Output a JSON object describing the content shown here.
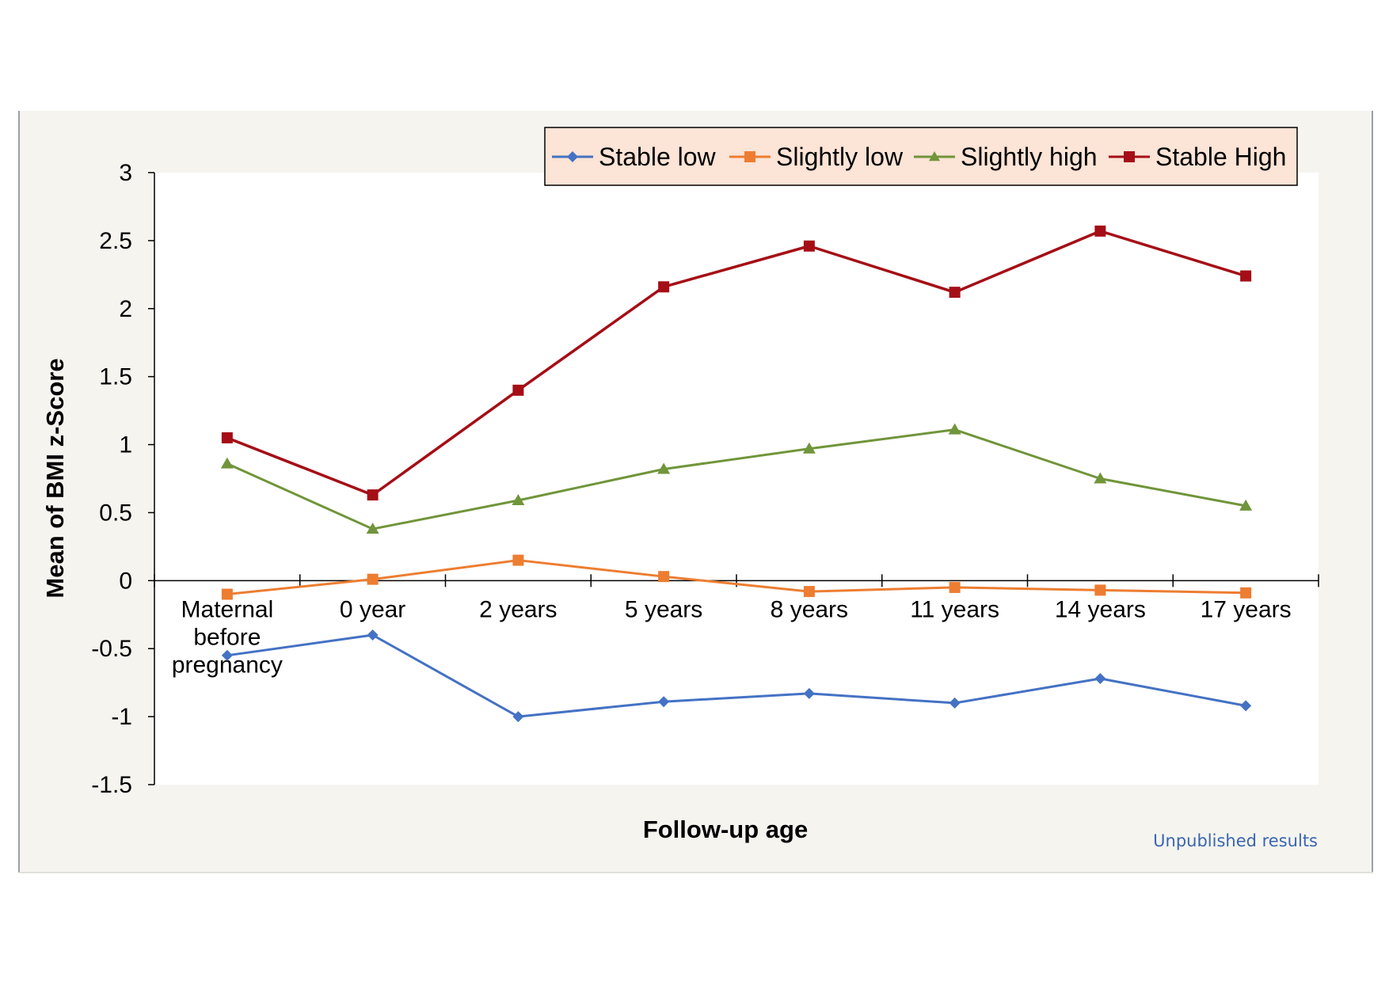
{
  "note": {
    "text": "Unpublished results",
    "color": "#3A66B0"
  },
  "chart_data": {
    "type": "line",
    "title": "",
    "xlabel": "Follow-up age",
    "ylabel": "Mean of BMI z-Score",
    "ylim": [
      -1.5,
      3
    ],
    "yticks": [
      3,
      2.5,
      2,
      1.5,
      1,
      0.5,
      0,
      -0.5,
      -1,
      -1.5
    ],
    "ytick_labels": [
      "3",
      "2.5",
      "2",
      "1.5",
      "1",
      "0.5",
      "0",
      "-0.5",
      "-1",
      "-1.5"
    ],
    "categories": [
      [
        "Maternal",
        "before",
        "pregnancy"
      ],
      [
        "0 year"
      ],
      [
        "2 years"
      ],
      [
        "5 years"
      ],
      [
        "8 years"
      ],
      [
        "11 years"
      ],
      [
        "14 years"
      ],
      [
        "17 years"
      ]
    ],
    "grid": false,
    "legend_position": "top-right",
    "series": [
      {
        "name": "Stable low",
        "color": "#4472C4",
        "marker": "diamond",
        "values": [
          -0.55,
          -0.4,
          -1.0,
          -0.89,
          -0.83,
          -0.9,
          -0.72,
          -0.92
        ]
      },
      {
        "name": "Slightly low",
        "color": "#ED7D31",
        "marker": "square",
        "values": [
          -0.1,
          0.01,
          0.15,
          0.03,
          -0.08,
          -0.05,
          -0.07,
          -0.09
        ]
      },
      {
        "name": "Slightly high",
        "color": "#70953A",
        "marker": "triangle",
        "values": [
          0.86,
          0.38,
          0.59,
          0.82,
          0.97,
          1.11,
          0.75,
          0.55
        ]
      },
      {
        "name": "Stable High",
        "color": "#A50E16",
        "marker": "square",
        "values": [
          1.05,
          0.63,
          1.4,
          2.16,
          2.46,
          2.12,
          2.57,
          2.24
        ]
      }
    ]
  }
}
